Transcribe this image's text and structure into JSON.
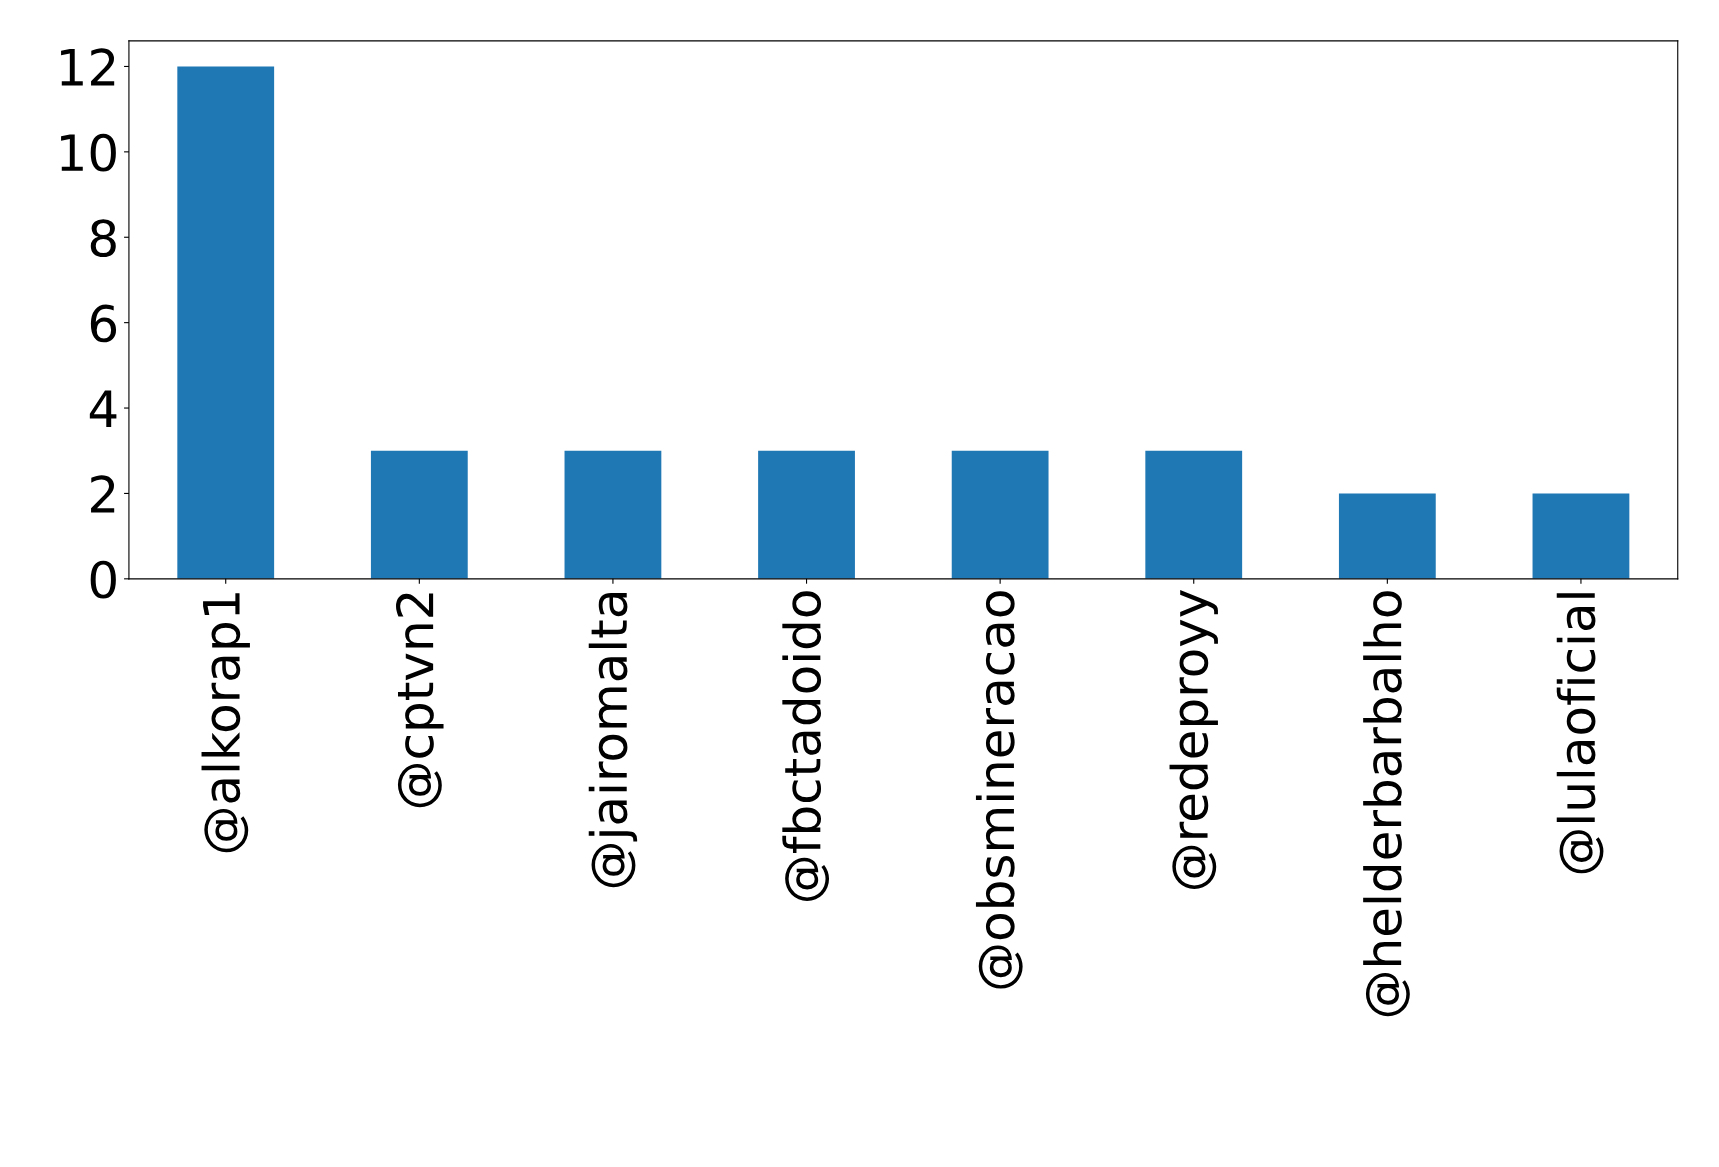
{
  "chart_data": {
    "type": "bar",
    "categories": [
      "@alkorap1",
      "@cptvn2",
      "@jairomalta",
      "@fbctadoido",
      "@obsmineracao",
      "@redeproyy",
      "@helderbarbalho",
      "@lulaoficial"
    ],
    "values": [
      12,
      3,
      3,
      3,
      3,
      3,
      2,
      2
    ],
    "color": "#1f77b4",
    "ylim": [
      0,
      12.6
    ],
    "yticks": [
      0,
      2,
      4,
      6,
      8,
      10,
      12
    ],
    "grid": false,
    "legend": false
  }
}
